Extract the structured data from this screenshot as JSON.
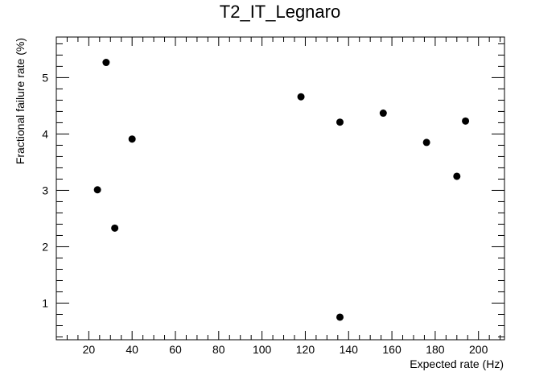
{
  "chart_data": {
    "type": "scatter",
    "title": "T2_IT_Legnaro",
    "xlabel": "Expected rate (Hz)",
    "ylabel": "Fractional failure rate (%)",
    "xlim": [
      5,
      212
    ],
    "ylim": [
      0.35,
      5.72
    ],
    "x_ticks": [
      20,
      40,
      60,
      80,
      100,
      120,
      140,
      160,
      180,
      200
    ],
    "y_ticks": [
      1,
      2,
      3,
      4,
      5
    ],
    "grid": false,
    "legend": "none",
    "marker_color": "#000000",
    "points": [
      {
        "x": 24,
        "y": 3.01
      },
      {
        "x": 28,
        "y": 5.27
      },
      {
        "x": 32,
        "y": 2.33
      },
      {
        "x": 40,
        "y": 3.91
      },
      {
        "x": 118,
        "y": 4.66
      },
      {
        "x": 136,
        "y": 4.21
      },
      {
        "x": 136,
        "y": 0.75
      },
      {
        "x": 156,
        "y": 4.37
      },
      {
        "x": 176,
        "y": 3.85
      },
      {
        "x": 190,
        "y": 3.25
      },
      {
        "x": 194,
        "y": 4.23
      }
    ]
  }
}
